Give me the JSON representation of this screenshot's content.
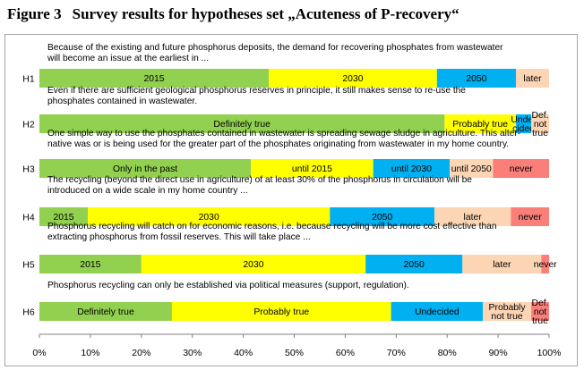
{
  "figure": {
    "number": "Figure 3",
    "title": "Survey results for hypotheses set „Acuteness of P-recovery“"
  },
  "chart_data": {
    "type": "bar",
    "orientation": "horizontal",
    "stacked": true,
    "x_unit": "percent",
    "xlim": [
      0,
      100
    ],
    "xticks": [
      "0%",
      "10%",
      "20%",
      "30%",
      "40%",
      "50%",
      "60%",
      "70%",
      "80%",
      "90%",
      "100%"
    ],
    "grid": false,
    "legend": "none",
    "colors": {
      "green": "#92d050",
      "yellow": "#ffff00",
      "blue": "#00b0f0",
      "peach": "#fcd5b4",
      "red": "#fa7f78"
    },
    "rows": [
      {
        "id": "H1",
        "question": [
          "Because of the existing and future phosphorus deposits, the demand for recovering phosphates from wastewater",
          "will become an issue at the earliest in ..."
        ],
        "segments": [
          {
            "label": "2015",
            "value": 45,
            "color": "green"
          },
          {
            "label": "2030",
            "value": 33,
            "color": "yellow"
          },
          {
            "label": "2050",
            "value": 15.5,
            "color": "blue"
          },
          {
            "label": "later",
            "value": 6.5,
            "color": "peach"
          }
        ]
      },
      {
        "id": "H2",
        "question": [
          "Even if there are sufficient geological phosphorus reserves in principle, it still makes sense to re-use the",
          "phosphates contained in wastewater."
        ],
        "segments": [
          {
            "label": "Definitely true",
            "value": 79.5,
            "color": "green"
          },
          {
            "label": "Probably true",
            "value": 14,
            "color": "yellow"
          },
          {
            "label": [
              "Unde-",
              "cided"
            ],
            "value": 3,
            "color": "blue"
          },
          {
            "label": [
              "Def.",
              "not",
              "true"
            ],
            "value": 3.5,
            "color": "peach"
          }
        ]
      },
      {
        "id": "H3",
        "question": [
          "One simple way to use the phosphates contained in wastewater is spreading sewage sludge in agriculture. This alter-",
          "native was or is being used for the greater part of the phosphates originating from wastewater in my home country."
        ],
        "segments": [
          {
            "label": "Only in the past",
            "value": 41.5,
            "color": "green"
          },
          {
            "label": "until 2015",
            "value": 24,
            "color": "yellow"
          },
          {
            "label": "until 2030",
            "value": 15,
            "color": "blue"
          },
          {
            "label": "until 2050",
            "value": 8.5,
            "color": "peach"
          },
          {
            "label": "never",
            "value": 11,
            "color": "red"
          }
        ]
      },
      {
        "id": "H4",
        "question": [
          "The recycling (beyond the direct use in agriculture) of at least 30% of the phosphorus in circulation will be",
          "introduced on a wide scale in my home country ..."
        ],
        "segments": [
          {
            "label": "2015",
            "value": 9.5,
            "color": "green"
          },
          {
            "label": "2030",
            "value": 47.5,
            "color": "yellow"
          },
          {
            "label": "2050",
            "value": 20.5,
            "color": "blue"
          },
          {
            "label": "later",
            "value": 15,
            "color": "peach"
          },
          {
            "label": "never",
            "value": 7.5,
            "color": "red"
          }
        ]
      },
      {
        "id": "H5",
        "question": [
          "Phosphorus recycling will catch on for economic reasons, i.e. because recycling will be more cost effective than",
          "extracting phosphorus from fossil reserves. This will take place ..."
        ],
        "segments": [
          {
            "label": "2015",
            "value": 20,
            "color": "green"
          },
          {
            "label": "2030",
            "value": 44,
            "color": "yellow"
          },
          {
            "label": "2050",
            "value": 19,
            "color": "blue"
          },
          {
            "label": "later",
            "value": 15.5,
            "color": "peach"
          },
          {
            "label": "never",
            "value": 1.5,
            "color": "red"
          }
        ]
      },
      {
        "id": "H6",
        "question": [
          "Phosphorus recycling can only be established via political measures (support, regulation)."
        ],
        "segments": [
          {
            "label": "Definitely true",
            "value": 26,
            "color": "green"
          },
          {
            "label": "Probably true",
            "value": 43,
            "color": "yellow"
          },
          {
            "label": "Undecided",
            "value": 18,
            "color": "blue"
          },
          {
            "label": [
              "Probably",
              "not true"
            ],
            "value": 9.5,
            "color": "peach"
          },
          {
            "label": [
              "Def.",
              "not",
              "true"
            ],
            "value": 3.5,
            "color": "red"
          }
        ]
      }
    ]
  }
}
